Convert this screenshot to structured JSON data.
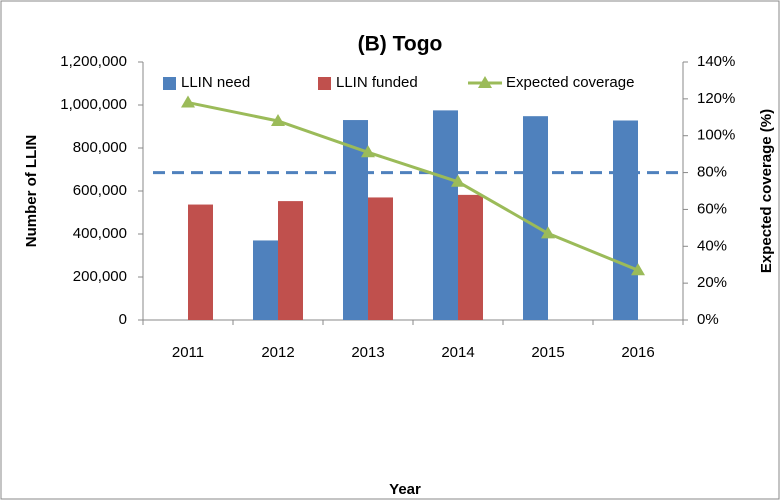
{
  "chart_data": {
    "type": "bar",
    "title": "(B) Togo",
    "x_label": "Year",
    "y_label": "Number of LLIN",
    "y2_label": "Expected coverage (%)",
    "categories": [
      "2011",
      "2012",
      "2013",
      "2014",
      "2015",
      "2016"
    ],
    "series": [
      {
        "name": "LLIN need",
        "type": "bar",
        "color": "#4f81bd",
        "values": [
          null,
          370000,
          930000,
          975000,
          948000,
          928000
        ]
      },
      {
        "name": "LLIN funded",
        "type": "bar",
        "color": "#c0504d",
        "values": [
          537000,
          553000,
          570000,
          582000,
          null,
          null
        ]
      },
      {
        "name": "Expected coverage",
        "type": "line",
        "axis": "y2",
        "color": "#9bbb59",
        "values": [
          118,
          108,
          91,
          75,
          47,
          27
        ]
      }
    ],
    "reference_line": {
      "value": 80,
      "axis": "y2",
      "color": "#4f81bd",
      "dashed": true
    },
    "ylim": [
      0,
      1200000
    ],
    "yticks": [
      0,
      {
        "value": 200000,
        "label": "200,000"
      },
      {
        "value": 400000,
        "label": "400,000"
      },
      {
        "value": 600000,
        "label": "600,000"
      },
      {
        "value": 800000,
        "label": "800,000"
      },
      {
        "value": 1000000,
        "label": "1,000,000"
      },
      {
        "value": 1200000,
        "label": "1,200,000"
      }
    ],
    "y2lim": [
      0,
      140
    ],
    "y2ticks": [
      {
        "value": 0,
        "label": "0%"
      },
      {
        "value": 20,
        "label": "20%"
      },
      {
        "value": 40,
        "label": "40%"
      },
      {
        "value": 60,
        "label": "60%"
      },
      {
        "value": 80,
        "label": "80%"
      },
      {
        "value": 100,
        "label": "100%"
      },
      {
        "value": 120,
        "label": "120%"
      },
      {
        "value": 140,
        "label": "140%"
      }
    ],
    "legend": "top",
    "grid": false
  }
}
